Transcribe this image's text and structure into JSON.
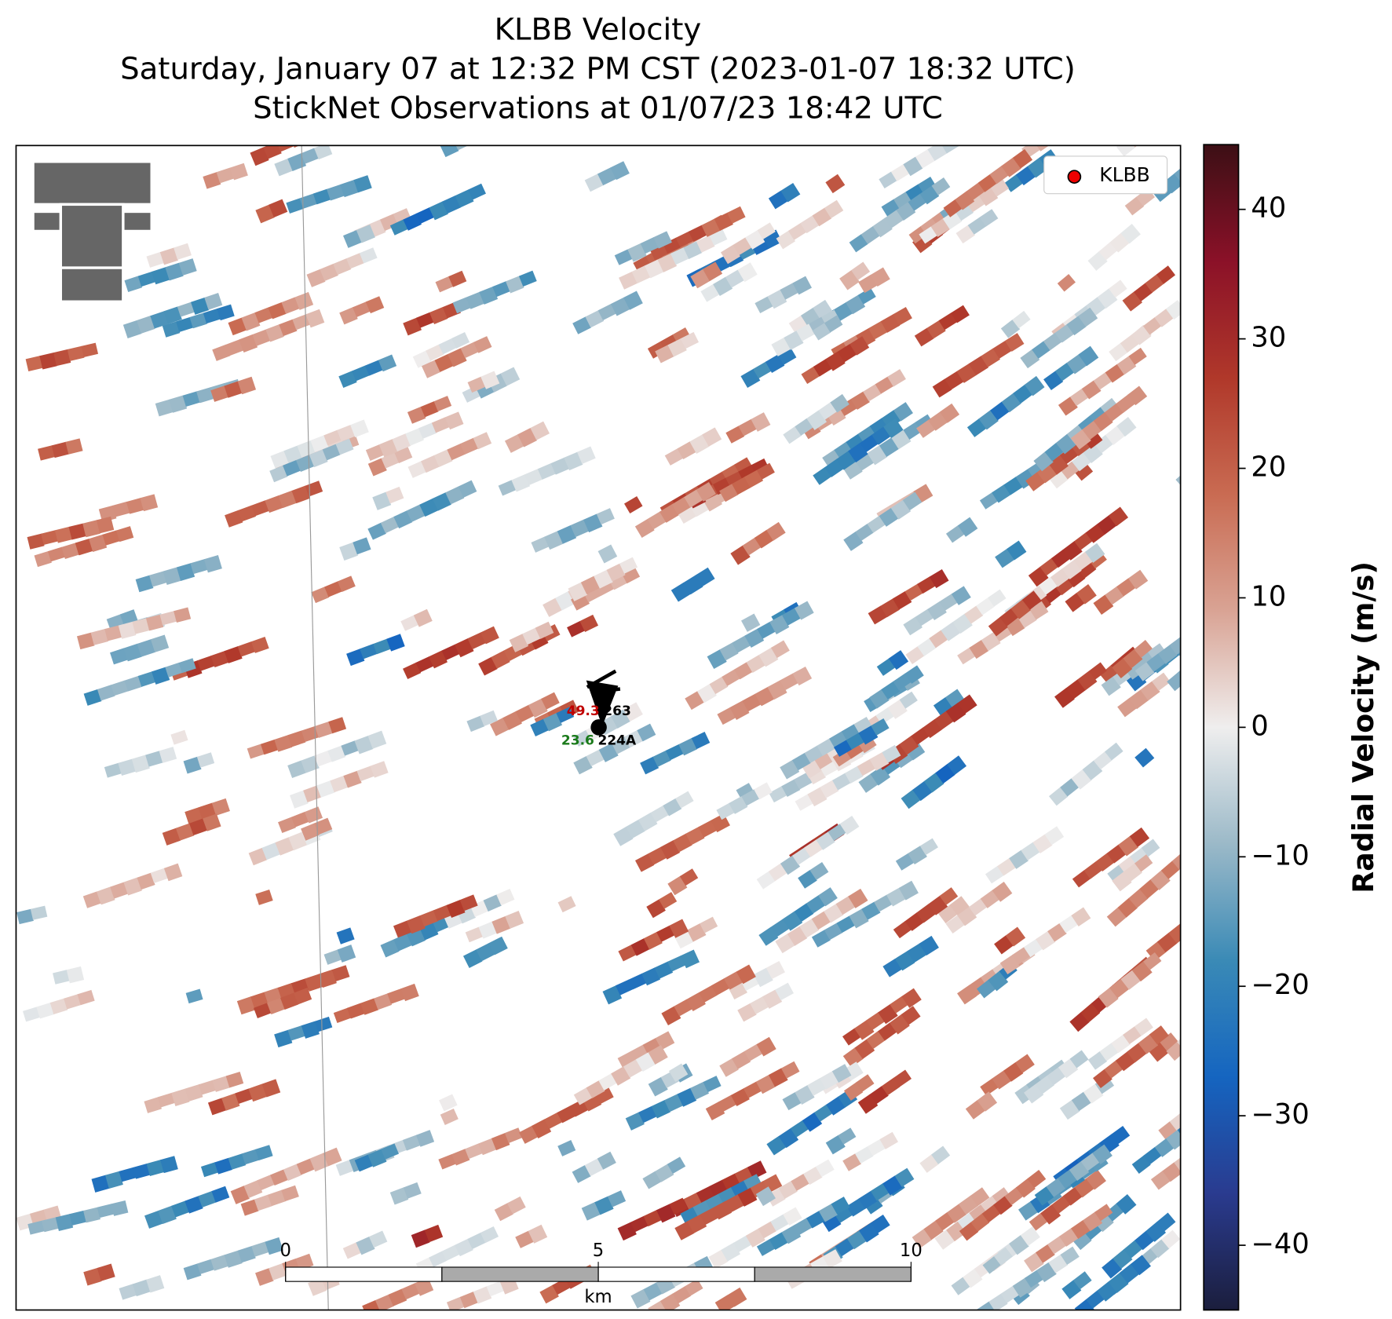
{
  "map": {
    "title": [
      "KLBB Velocity",
      "Saturday, January 07 at 12:32 PM CST (2023-01-07 18:32 UTC)",
      "StickNet Observations at 01/07/23 18:42 UTC"
    ],
    "legend": [
      "KLBB"
    ],
    "colorbar": {
      "label": "Radial Velocity (m/s)",
      "lim": [
        -45,
        45
      ],
      "ticks": [
        {
          "value": -40,
          "label": "−40"
        },
        {
          "value": -30,
          "label": "−30"
        },
        {
          "value": -20,
          "label": "−20"
        },
        {
          "value": -10,
          "label": "−10"
        },
        0,
        10,
        20,
        30,
        40
      ],
      "colors": [
        "#1b1e3d",
        "#2a3b8f",
        "#1565c0",
        "#3a8ab6",
        "#9bb9c8",
        "#efeeee",
        "#d9a394",
        "#c96b52",
        "#b0382a",
        "#8b1128",
        "#3c0f15"
      ]
    },
    "stations": [
      {
        "id": "263",
        "value": 49.3,
        "color": "#c00000"
      },
      {
        "id": "224A",
        "value": 23.6,
        "color": "#1a7a1a"
      }
    ],
    "scalebar": {
      "lim": [
        0,
        10
      ],
      "ticks": [
        0,
        5,
        10
      ],
      "label": "km"
    }
  }
}
